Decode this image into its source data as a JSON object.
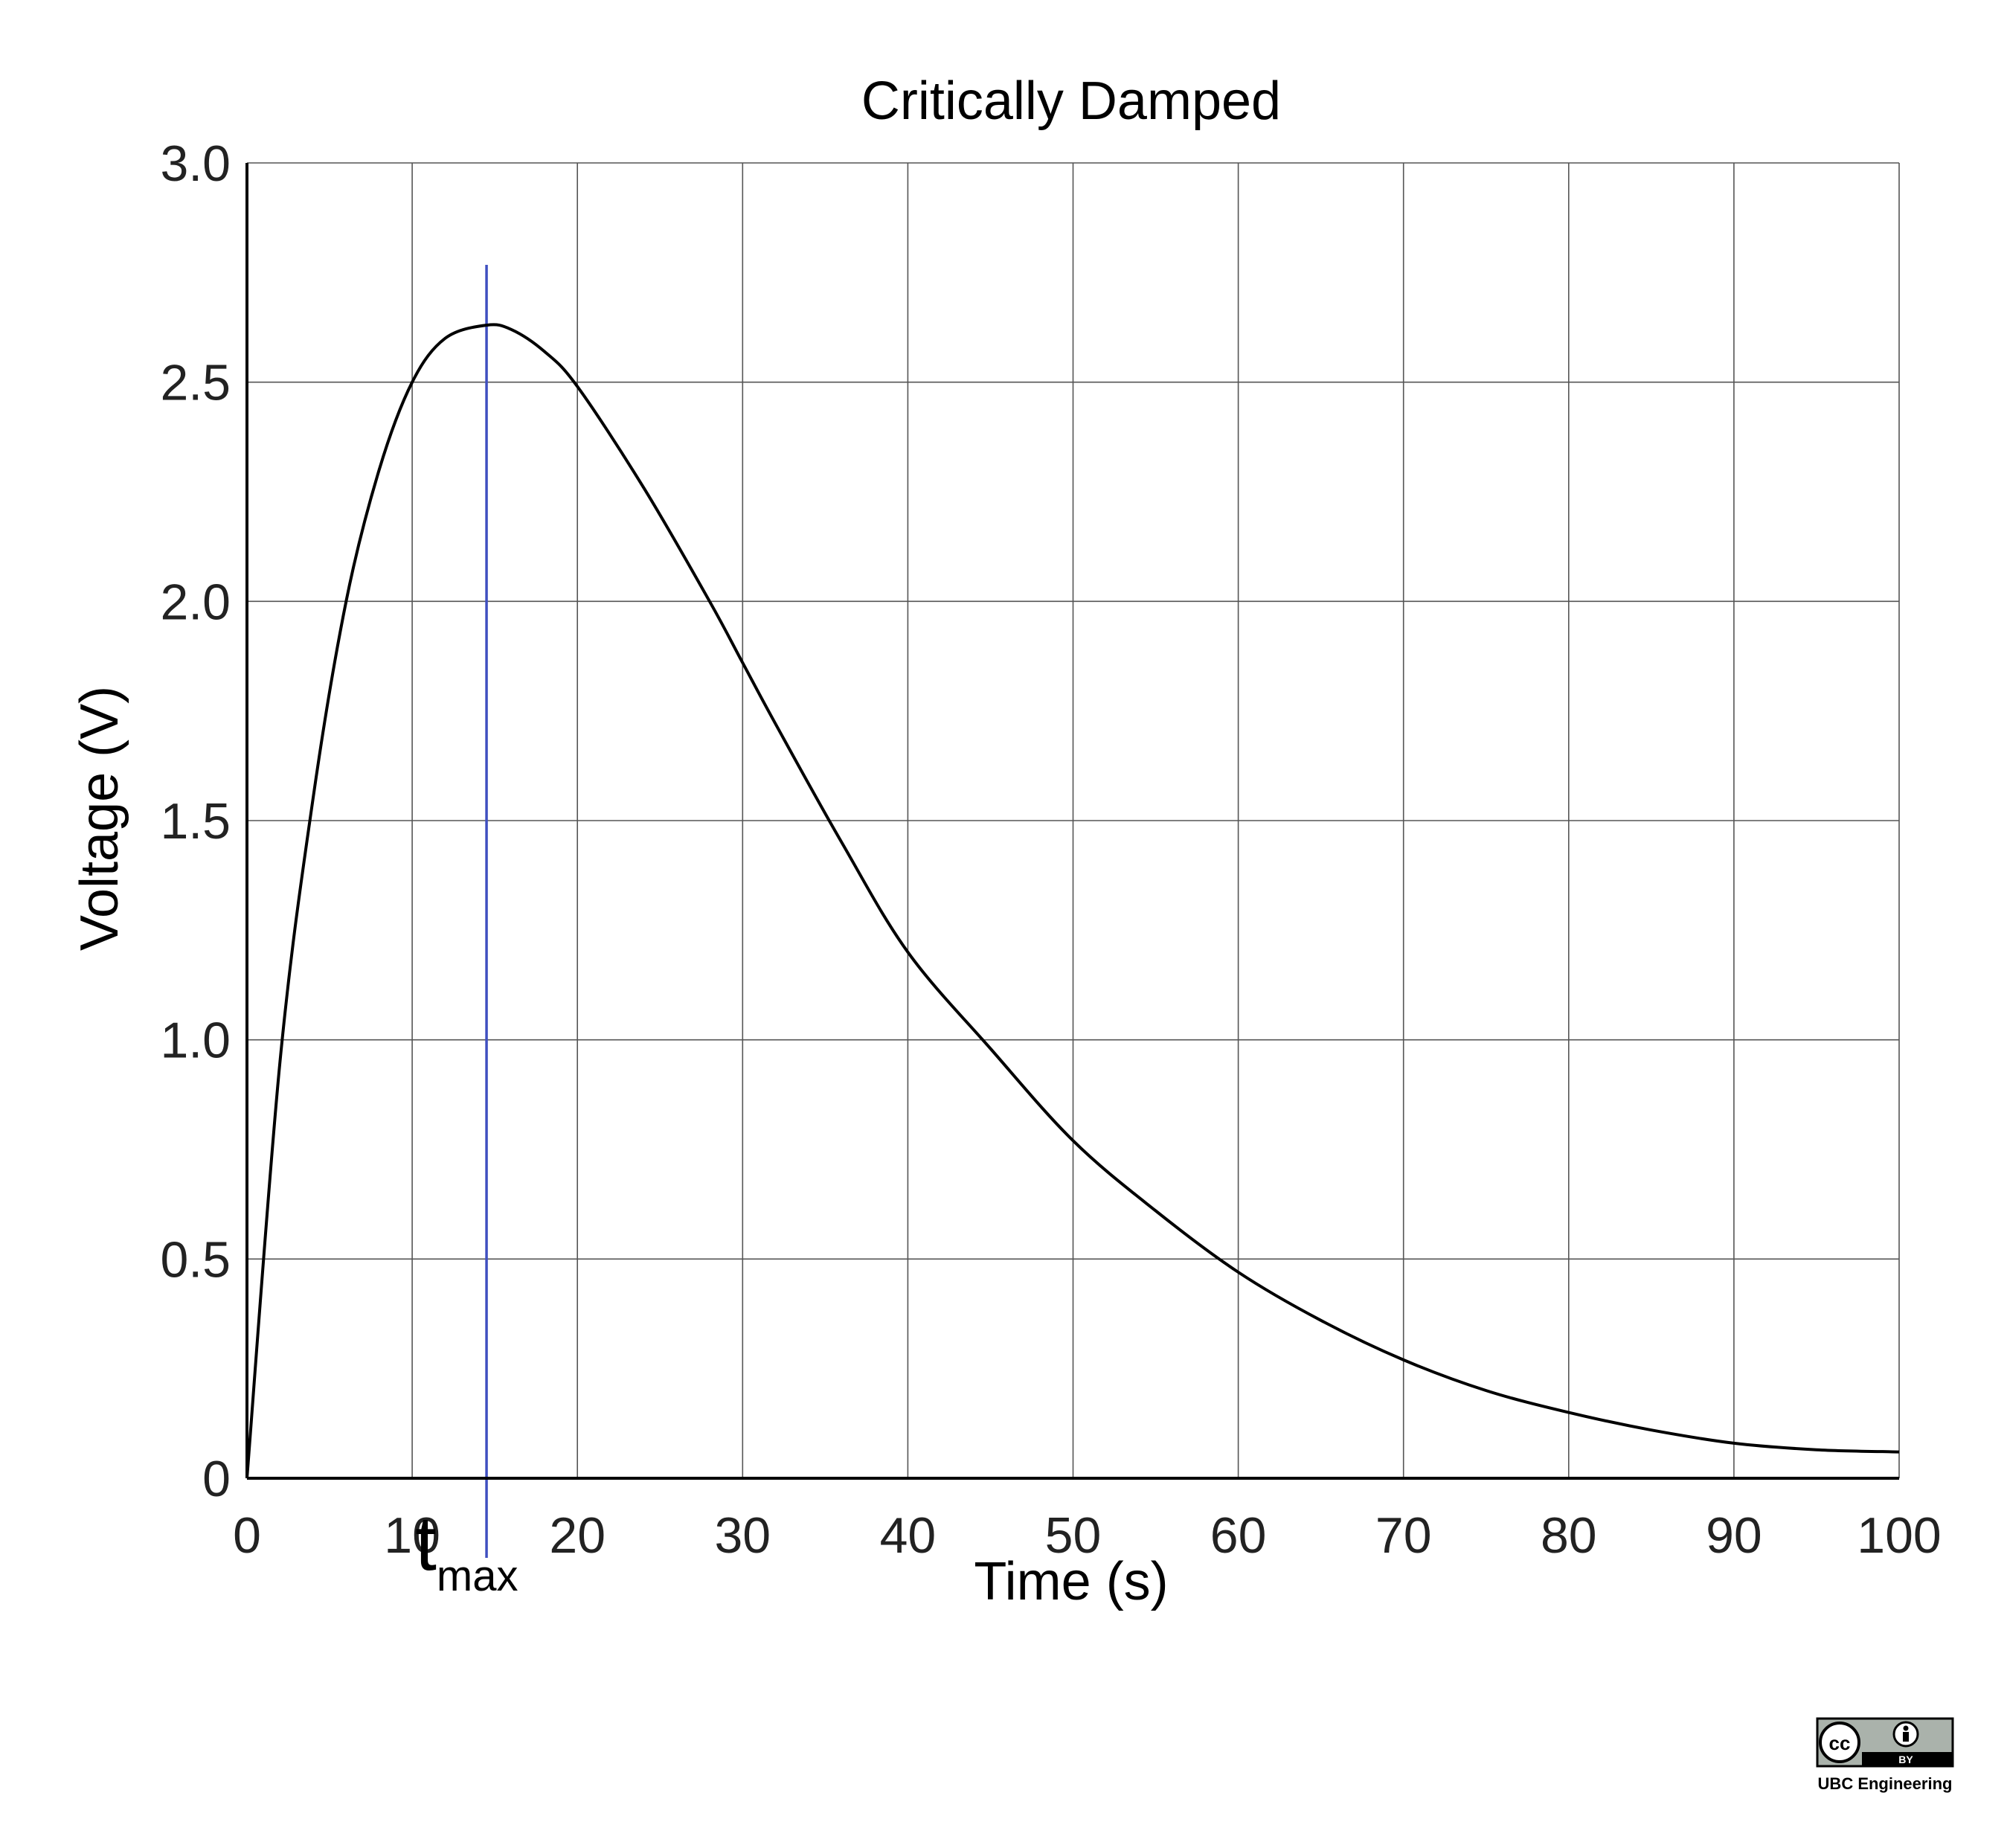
{
  "chart_data": {
    "type": "line",
    "title": "Critically Damped",
    "xlabel": "Time (s)",
    "ylabel": "Voltage (V)",
    "xlim": [
      0,
      100
    ],
    "ylim": [
      0,
      3.0
    ],
    "grid": true,
    "x_ticks": [
      "0",
      "10",
      "20",
      "30",
      "40",
      "50",
      "60",
      "70",
      "80",
      "90",
      "100"
    ],
    "y_ticks": [
      "0",
      "0.5",
      "1.0",
      "1.5",
      "2.0",
      "2.5",
      "3.0"
    ],
    "series": [
      {
        "color": "#000000",
        "x": [
          0,
          2,
          4,
          6,
          8,
          10,
          12,
          14.5,
          16,
          18,
          20,
          24,
          28,
          30,
          32,
          36,
          40,
          45,
          50,
          55,
          60,
          65,
          70,
          75,
          80,
          85,
          90,
          95,
          100
        ],
        "y": [
          0,
          0.95,
          1.55,
          2.0,
          2.3,
          2.5,
          2.6,
          2.63,
          2.62,
          2.57,
          2.49,
          2.26,
          2.0,
          1.86,
          1.72,
          1.45,
          1.2,
          0.98,
          0.77,
          0.61,
          0.47,
          0.36,
          0.27,
          0.2,
          0.15,
          0.11,
          0.08,
          0.065,
          0.06
        ]
      }
    ],
    "annotations": [
      {
        "type": "vline",
        "x": 14.5,
        "color": "#3f4fc0",
        "label_main": "t",
        "label_sub": "max"
      }
    ]
  },
  "credit": {
    "text": "UBC Engineering",
    "license_cc": "cc",
    "license_by": "BY",
    "license_icon": "cc-by-icon"
  }
}
